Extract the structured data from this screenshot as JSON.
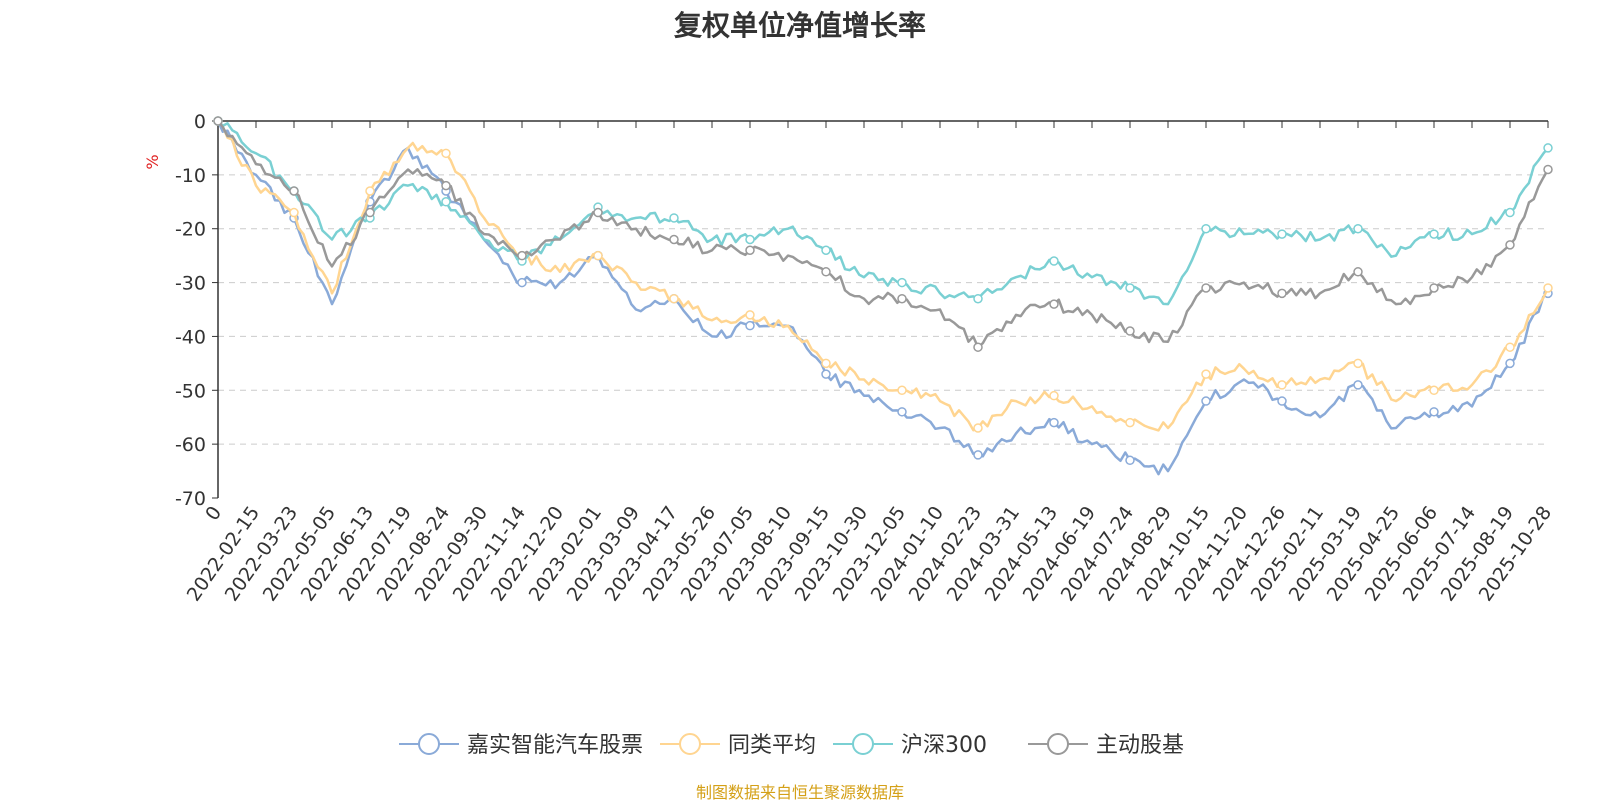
{
  "chart_data": {
    "type": "line",
    "title": "复权单位净值增长率",
    "ylabel": "%",
    "xlabel": "",
    "ylim": [
      -70,
      0
    ],
    "yticks": [
      0,
      -10,
      -20,
      -30,
      -40,
      -50,
      -60,
      -70
    ],
    "grid": "horizontal dashed",
    "legend_position": "bottom-center",
    "categories": [
      "0",
      "2022-02-15",
      "2022-03-23",
      "2022-05-05",
      "2022-06-13",
      "2022-07-19",
      "2022-08-24",
      "2022-09-30",
      "2022-11-14",
      "2022-12-20",
      "2023-02-01",
      "2023-03-09",
      "2023-04-17",
      "2023-05-26",
      "2023-07-05",
      "2023-08-10",
      "2023-09-15",
      "2023-10-30",
      "2023-12-05",
      "2024-01-10",
      "2024-02-23",
      "2024-03-31",
      "2024-05-13",
      "2024-06-19",
      "2024-07-24",
      "2024-08-29",
      "2024-10-15",
      "2024-11-20",
      "2024-12-26",
      "2025-02-11",
      "2025-03-19",
      "2025-04-25",
      "2025-06-06",
      "2025-07-14",
      "2025-08-19",
      "2025-10-28"
    ],
    "series": [
      {
        "name": "嘉实智能汽车股票",
        "color": "#8aaad8",
        "values": [
          0,
          -10,
          -18,
          -34,
          -15,
          -5,
          -13,
          -22,
          -30,
          -30,
          -25,
          -35,
          -33,
          -40,
          -38,
          -38,
          -47,
          -51,
          -54,
          -57,
          -62,
          -58,
          -56,
          -60,
          -63,
          -65,
          -52,
          -48,
          -52,
          -55,
          -49,
          -57,
          -54,
          -53,
          -45,
          -32
        ]
      },
      {
        "name": "同类平均",
        "color": "#ffd591",
        "values": [
          0,
          -12,
          -17,
          -32,
          -13,
          -5,
          -6,
          -18,
          -25,
          -28,
          -25,
          -30,
          -33,
          -37,
          -36,
          -38,
          -45,
          -48,
          -50,
          -52,
          -57,
          -52,
          -51,
          -53,
          -56,
          -57,
          -47,
          -46,
          -49,
          -48,
          -45,
          -52,
          -50,
          -49,
          -42,
          -31
        ]
      },
      {
        "name": "沪深300",
        "color": "#7ad0d3",
        "values": [
          0,
          -6,
          -13,
          -22,
          -18,
          -12,
          -15,
          -22,
          -26,
          -22,
          -16,
          -18,
          -18,
          -22,
          -22,
          -20,
          -24,
          -29,
          -30,
          -32,
          -33,
          -29,
          -26,
          -29,
          -31,
          -34,
          -20,
          -21,
          -21,
          -22,
          -20,
          -25,
          -21,
          -21,
          -17,
          -5
        ]
      },
      {
        "name": "主动股基",
        "color": "#999999",
        "values": [
          0,
          -8,
          -13,
          -27,
          -17,
          -9,
          -12,
          -21,
          -25,
          -22,
          -17,
          -20,
          -22,
          -24,
          -24,
          -25,
          -28,
          -33,
          -33,
          -35,
          -42,
          -36,
          -34,
          -36,
          -39,
          -41,
          -31,
          -30,
          -32,
          -32,
          -28,
          -34,
          -31,
          -29,
          -23,
          -9
        ]
      }
    ]
  },
  "source_note": "制图数据来自恒生聚源数据库"
}
